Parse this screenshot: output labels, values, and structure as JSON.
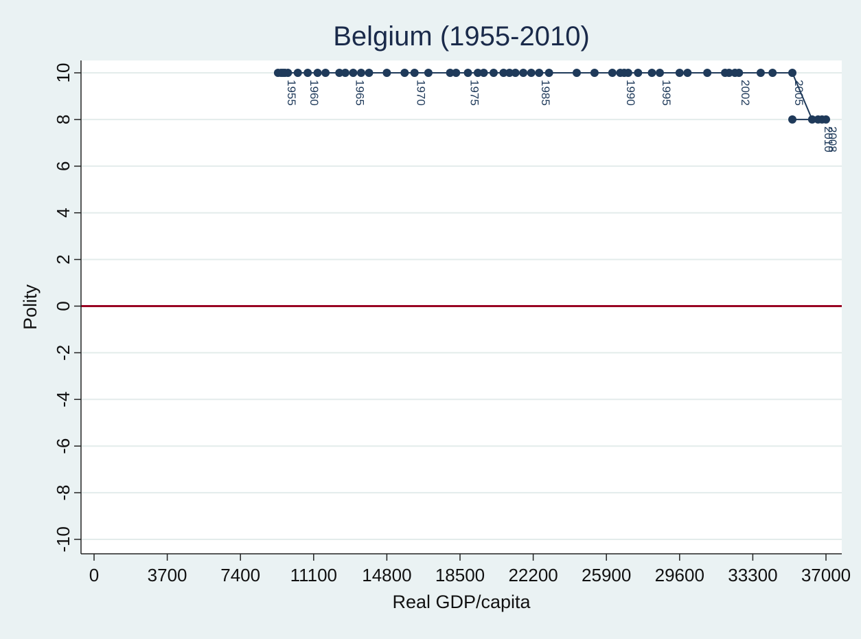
{
  "chart_data": {
    "type": "line",
    "title": "Belgium (1955-2010)",
    "xlabel": "Real GDP/capita",
    "ylabel": "Polity",
    "xlim": [
      0,
      37000
    ],
    "ylim": [
      -10,
      10
    ],
    "x_ticks": [
      0,
      3700,
      7400,
      11100,
      14800,
      18500,
      22200,
      25900,
      29600,
      33300,
      37000
    ],
    "y_ticks": [
      10,
      8,
      6,
      4,
      2,
      0,
      -2,
      -4,
      -6,
      -8,
      -10
    ],
    "grid": true,
    "reference_line": {
      "y": 0,
      "color": "#990022"
    },
    "series": [
      {
        "color": "#1f3a5a",
        "points": [
          {
            "x": 9300,
            "y": 10
          },
          {
            "x": 9450,
            "y": 10
          },
          {
            "x": 9550,
            "y": 10
          },
          {
            "x": 9650,
            "y": 10,
            "label": "1955"
          },
          {
            "x": 9800,
            "y": 10
          },
          {
            "x": 10300,
            "y": 10
          },
          {
            "x": 10800,
            "y": 10,
            "label": "1960"
          },
          {
            "x": 11300,
            "y": 10
          },
          {
            "x": 11700,
            "y": 10
          },
          {
            "x": 12400,
            "y": 10
          },
          {
            "x": 12700,
            "y": 10
          },
          {
            "x": 13100,
            "y": 10,
            "label": "1965"
          },
          {
            "x": 13500,
            "y": 10
          },
          {
            "x": 13900,
            "y": 10
          },
          {
            "x": 14800,
            "y": 10
          },
          {
            "x": 15700,
            "y": 10
          },
          {
            "x": 16200,
            "y": 10,
            "label": "1970"
          },
          {
            "x": 16900,
            "y": 10
          },
          {
            "x": 18000,
            "y": 10
          },
          {
            "x": 18300,
            "y": 10
          },
          {
            "x": 18900,
            "y": 10,
            "label": "1975"
          },
          {
            "x": 19400,
            "y": 10
          },
          {
            "x": 19700,
            "y": 10
          },
          {
            "x": 20200,
            "y": 10
          },
          {
            "x": 20700,
            "y": 10
          },
          {
            "x": 21000,
            "y": 10
          },
          {
            "x": 21300,
            "y": 10
          },
          {
            "x": 21700,
            "y": 10
          },
          {
            "x": 22100,
            "y": 10
          },
          {
            "x": 22500,
            "y": 10,
            "label": "1985"
          },
          {
            "x": 23000,
            "y": 10
          },
          {
            "x": 24400,
            "y": 10
          },
          {
            "x": 25300,
            "y": 10
          },
          {
            "x": 26200,
            "y": 10
          },
          {
            "x": 26600,
            "y": 10
          },
          {
            "x": 26800,
            "y": 10,
            "label": "1990"
          },
          {
            "x": 27000,
            "y": 10
          },
          {
            "x": 27500,
            "y": 10
          },
          {
            "x": 28200,
            "y": 10
          },
          {
            "x": 28600,
            "y": 10,
            "label": "1995"
          },
          {
            "x": 29600,
            "y": 10
          },
          {
            "x": 30000,
            "y": 10
          },
          {
            "x": 31000,
            "y": 10
          },
          {
            "x": 31900,
            "y": 10
          },
          {
            "x": 32100,
            "y": 10
          },
          {
            "x": 32400,
            "y": 10
          },
          {
            "x": 32600,
            "y": 10,
            "label": "2002"
          },
          {
            "x": 33700,
            "y": 10
          },
          {
            "x": 34300,
            "y": 10
          },
          {
            "x": 35300,
            "y": 10,
            "label": "2005"
          },
          {
            "x": 36300,
            "y": 8
          },
          {
            "x": 36600,
            "y": 8
          },
          {
            "x": 36800,
            "y": 8,
            "label": "2010"
          },
          {
            "x": 37000,
            "y": 8,
            "label": "2008"
          },
          {
            "x": 35300,
            "y": 8
          }
        ]
      }
    ]
  }
}
